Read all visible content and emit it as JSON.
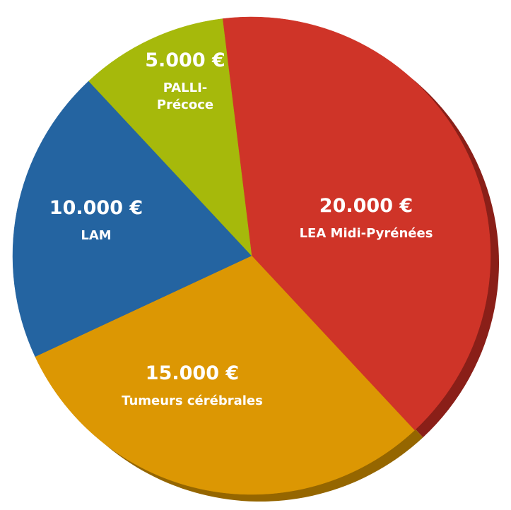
{
  "chart_data": {
    "type": "pie",
    "title": "",
    "currency": "€",
    "slices": [
      {
        "amount": "20.000 €",
        "label_lines": [
          "LEA Midi-Pyrénées"
        ],
        "value": 20000,
        "color": "#cf3428",
        "shadow": "#8a1f18"
      },
      {
        "amount": "15.000 €",
        "label_lines": [
          "Tumeurs cérébrales"
        ],
        "value": 15000,
        "color": "#dc9703",
        "shadow": "#956600"
      },
      {
        "amount": "10.000 €",
        "label_lines": [
          "LAM"
        ],
        "value": 10000,
        "color": "#2464a1",
        "shadow": "#163f67"
      },
      {
        "amount": "5.000 €",
        "label_lines": [
          "PALLI-",
          "Précoce"
        ],
        "value": 5000,
        "color": "#a6b90b",
        "shadow": "#6c7806"
      }
    ]
  }
}
